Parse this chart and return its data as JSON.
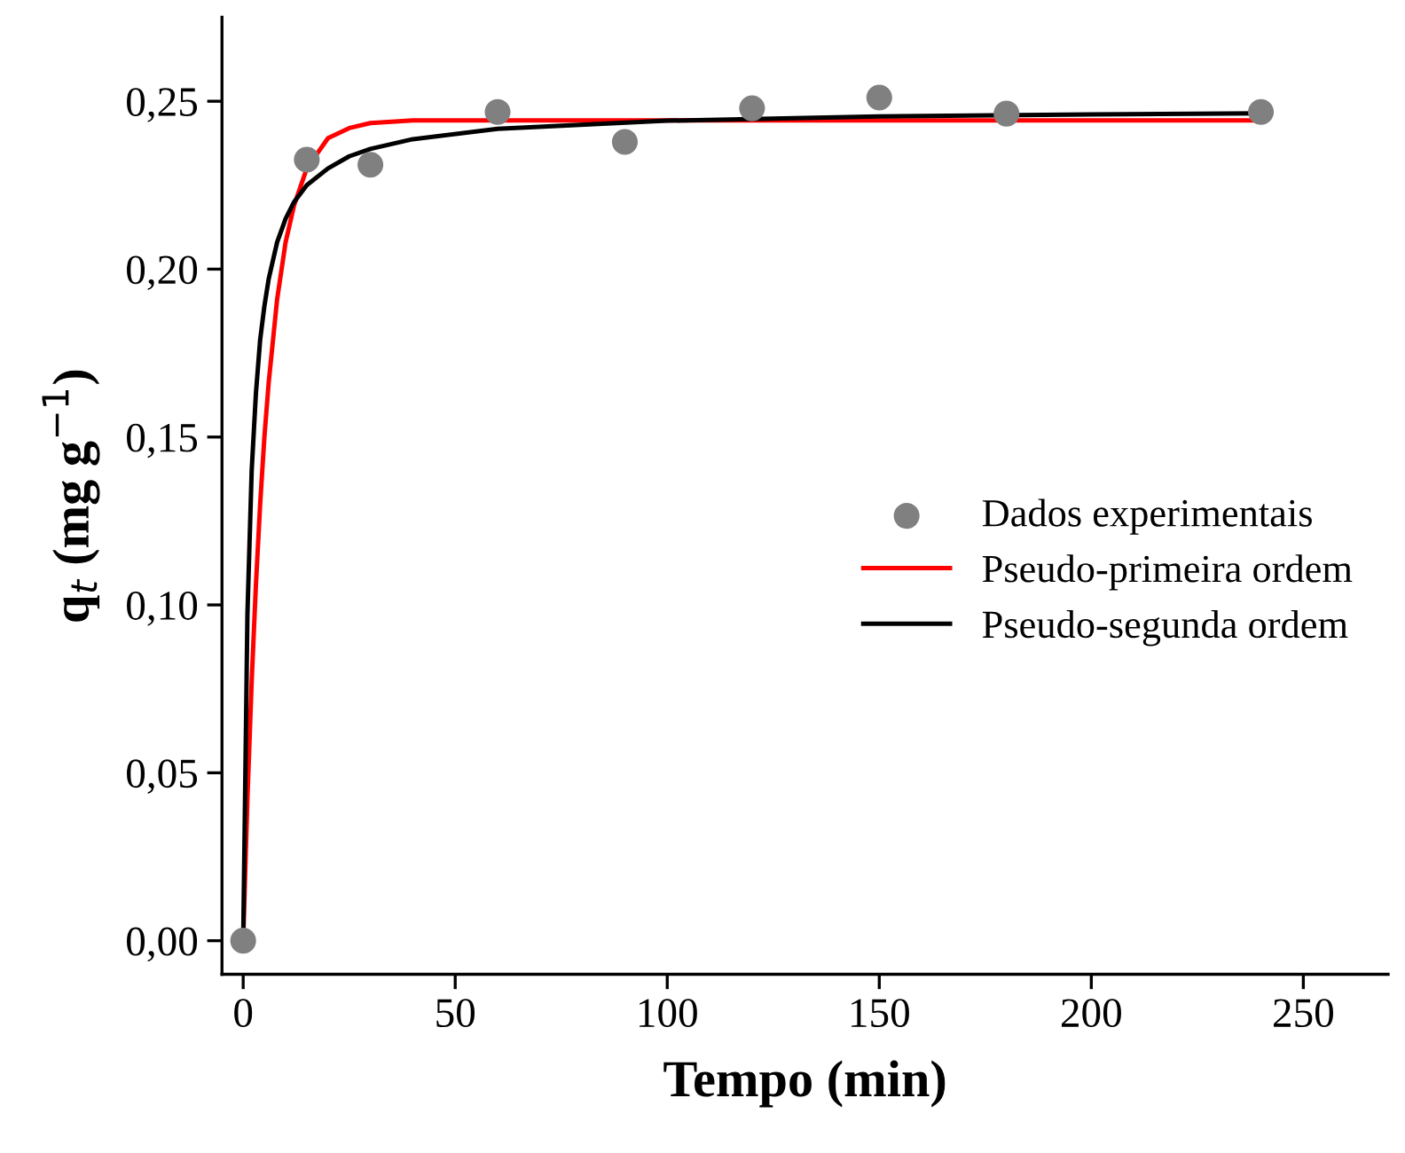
{
  "chart_data": {
    "type": "scatter",
    "xlabel": "Tempo (min)",
    "ylabel": "q$_{t}$ (mg g$^{−1}$)",
    "xlim": [
      -5,
      270
    ],
    "ylim": [
      -0.01,
      0.275
    ],
    "xticks": [
      0,
      50,
      100,
      150,
      200,
      250
    ],
    "yticks": [
      {
        "value": 0,
        "label": "0,00"
      },
      {
        "value": 0.05,
        "label": "0,05"
      },
      {
        "value": 0.1,
        "label": "0,10"
      },
      {
        "value": 0.15,
        "label": "0,15"
      },
      {
        "value": 0.2,
        "label": "0,20"
      },
      {
        "value": 0.25,
        "label": "0,25"
      }
    ],
    "grid": false,
    "legend": "right",
    "series": [
      {
        "name": "Dados experimentais",
        "marker": "circle",
        "color": "#808080",
        "x": [
          0,
          15,
          30,
          60,
          90,
          120,
          150,
          180,
          240
        ],
        "values": [
          0,
          0.2326,
          0.2311,
          0.2468,
          0.2379,
          0.2479,
          0.2511,
          0.2463,
          0.2468
        ]
      },
      {
        "name": "Pseudo-primeira ordem",
        "type": "line",
        "marker": "none",
        "line_style": "solid",
        "color": "#ff0000",
        "x": [
          0,
          1,
          2,
          3,
          4,
          5,
          6,
          8,
          10,
          12,
          15,
          20,
          25,
          30,
          40,
          60,
          100,
          150,
          200,
          240
        ],
        "values": [
          0,
          0.0423,
          0.0772,
          0.106,
          0.13,
          0.15,
          0.166,
          0.191,
          0.208,
          0.219,
          0.23,
          0.239,
          0.242,
          0.2435,
          0.2443,
          0.2443,
          0.2443,
          0.2443,
          0.2443,
          0.2443
        ]
      },
      {
        "name": "Pseudo-segunda ordem",
        "type": "line",
        "marker": "none",
        "line_style": "solid",
        "color": "#000000",
        "x": [
          0,
          1,
          2,
          3,
          4,
          5,
          6,
          8,
          10,
          12,
          15,
          20,
          25,
          30,
          40,
          60,
          100,
          150,
          200,
          240
        ],
        "values": [
          0,
          0.0972,
          0.14,
          0.163,
          0.179,
          0.189,
          0.197,
          0.208,
          0.215,
          0.22,
          0.225,
          0.23,
          0.2336,
          0.2358,
          0.2387,
          0.2418,
          0.2442,
          0.2455,
          0.2461,
          0.2464
        ]
      }
    ]
  }
}
